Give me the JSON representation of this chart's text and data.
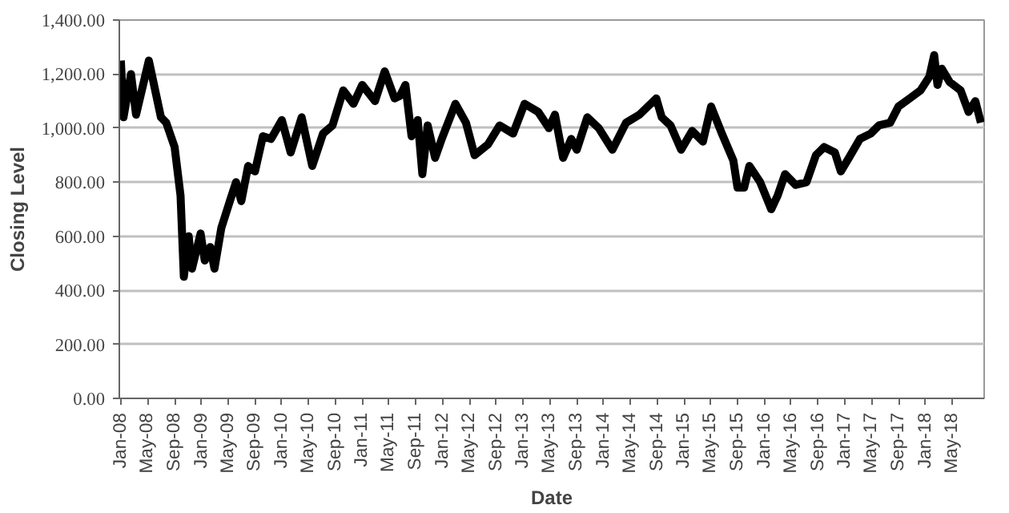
{
  "chart_data": {
    "type": "line",
    "xlabel": "Date",
    "ylabel": "Closing Level",
    "x": [
      "2008-01-01",
      "2008-01-13",
      "2008-02-16",
      "2008-03-10",
      "2008-05-07",
      "2008-07-01",
      "2008-07-25",
      "2008-09-01",
      "2008-09-28",
      "2008-10-13",
      "2008-11-04",
      "2008-11-19",
      "2008-12-28",
      "2009-01-16",
      "2009-02-10",
      "2009-03-01",
      "2009-04-01",
      "2009-05-10",
      "2009-06-07",
      "2009-07-01",
      "2009-08-01",
      "2009-09-01",
      "2009-10-07",
      "2009-11-13",
      "2010-01-01",
      "2010-02-10",
      "2010-04-01",
      "2010-05-19",
      "2010-07-07",
      "2010-08-19",
      "2010-10-07",
      "2010-11-22",
      "2011-01-01",
      "2011-02-28",
      "2011-04-13",
      "2011-05-28",
      "2011-06-22",
      "2011-07-16",
      "2011-08-13",
      "2011-09-10",
      "2011-10-01",
      "2011-10-25",
      "2011-11-28",
      "2011-12-28",
      "2012-02-28",
      "2012-04-16",
      "2012-05-25",
      "2012-07-25",
      "2012-09-16",
      "2012-11-16",
      "2013-01-07",
      "2013-03-10",
      "2013-04-28",
      "2013-05-25",
      "2013-07-01",
      "2013-08-07",
      "2013-09-01",
      "2013-10-19",
      "2013-12-10",
      "2014-02-10",
      "2014-04-13",
      "2014-06-13",
      "2014-08-28",
      "2014-09-22",
      "2014-11-01",
      "2014-12-19",
      "2015-02-07",
      "2015-03-28",
      "2015-05-04",
      "2015-06-22",
      "2015-08-13",
      "2015-09-01",
      "2015-10-01",
      "2015-10-25",
      "2015-12-13",
      "2016-02-01",
      "2016-03-01",
      "2016-04-04",
      "2016-05-22",
      "2016-07-10",
      "2016-08-22",
      "2016-09-28",
      "2016-11-16",
      "2016-12-13",
      "2017-01-19",
      "2017-03-10",
      "2017-04-28",
      "2017-06-04",
      "2017-07-25",
      "2017-09-01",
      "2017-10-22",
      "2017-12-10",
      "2018-01-19",
      "2018-02-10",
      "2018-02-25",
      "2018-03-16",
      "2018-04-22",
      "2018-06-10",
      "2018-07-16",
      "2018-08-16",
      "2018-09-10"
    ],
    "series": [
      {
        "color": "#000000",
        "values": [
          1250,
          1040,
          1200,
          1050,
          1250,
          1040,
          1020,
          930,
          750,
          450,
          600,
          480,
          610,
          510,
          560,
          480,
          630,
          730,
          800,
          730,
          860,
          840,
          970,
          960,
          1030,
          910,
          1040,
          860,
          980,
          1010,
          1140,
          1090,
          1160,
          1100,
          1210,
          1110,
          1120,
          1160,
          970,
          1030,
          830,
          1010,
          890,
          960,
          1090,
          1020,
          900,
          940,
          1010,
          980,
          1090,
          1060,
          1000,
          1050,
          890,
          960,
          920,
          1040,
          1000,
          920,
          1020,
          1050,
          1110,
          1040,
          1010,
          920,
          990,
          950,
          1080,
          980,
          880,
          780,
          780,
          860,
          800,
          700,
          750,
          830,
          790,
          800,
          900,
          930,
          910,
          840,
          890,
          960,
          980,
          1010,
          1020,
          1080,
          1110,
          1140,
          1190,
          1270,
          1160,
          1220,
          1170,
          1140,
          1060,
          1100,
          1020
        ]
      }
    ],
    "xlim": [
      "2007-12-25",
      "2018-09-25"
    ],
    "xticks": [
      {
        "value": "2008-01-01",
        "label": "Jan-08"
      },
      {
        "value": "2008-05-01",
        "label": "May-08"
      },
      {
        "value": "2008-09-01",
        "label": "Sep-08"
      },
      {
        "value": "2009-01-01",
        "label": "Jan-09"
      },
      {
        "value": "2009-05-01",
        "label": "May-09"
      },
      {
        "value": "2009-09-01",
        "label": "Sep-09"
      },
      {
        "value": "2010-01-01",
        "label": "Jan-10"
      },
      {
        "value": "2010-05-01",
        "label": "May-10"
      },
      {
        "value": "2010-09-01",
        "label": "Sep-10"
      },
      {
        "value": "2011-01-01",
        "label": "Jan-11"
      },
      {
        "value": "2011-05-01",
        "label": "May-11"
      },
      {
        "value": "2011-09-01",
        "label": "Sep-11"
      },
      {
        "value": "2012-01-01",
        "label": "Jan-12"
      },
      {
        "value": "2012-05-01",
        "label": "May-12"
      },
      {
        "value": "2012-09-01",
        "label": "Sep-12"
      },
      {
        "value": "2013-01-01",
        "label": "Jan-13"
      },
      {
        "value": "2013-05-01",
        "label": "May-13"
      },
      {
        "value": "2013-09-01",
        "label": "Sep-13"
      },
      {
        "value": "2014-01-01",
        "label": "Jan-14"
      },
      {
        "value": "2014-05-01",
        "label": "May-14"
      },
      {
        "value": "2014-09-01",
        "label": "Sep-14"
      },
      {
        "value": "2015-01-01",
        "label": "Jan-15"
      },
      {
        "value": "2015-05-01",
        "label": "May-15"
      },
      {
        "value": "2015-09-01",
        "label": "Sep-15"
      },
      {
        "value": "2016-01-01",
        "label": "Jan-16"
      },
      {
        "value": "2016-05-01",
        "label": "May-16"
      },
      {
        "value": "2016-09-01",
        "label": "Sep-16"
      },
      {
        "value": "2017-01-01",
        "label": "Jan-17"
      },
      {
        "value": "2017-05-01",
        "label": "May-17"
      },
      {
        "value": "2017-09-01",
        "label": "Sep-17"
      },
      {
        "value": "2018-01-01",
        "label": "Jan-18"
      },
      {
        "value": "2018-05-01",
        "label": "May-18"
      }
    ],
    "ylim": [
      0,
      1400
    ],
    "yticks": [
      {
        "value": 0,
        "label": "0.00"
      },
      {
        "value": 200,
        "label": "200.00"
      },
      {
        "value": 400,
        "label": "400.00"
      },
      {
        "value": 600,
        "label": "600.00"
      },
      {
        "value": 800,
        "label": "800.00"
      },
      {
        "value": 1000,
        "label": "1,000.00"
      },
      {
        "value": 1200,
        "label": "1,200.00"
      },
      {
        "value": 1400,
        "label": "1,400.00"
      }
    ],
    "grid": "y",
    "marker": "none",
    "line_style": "solid"
  }
}
